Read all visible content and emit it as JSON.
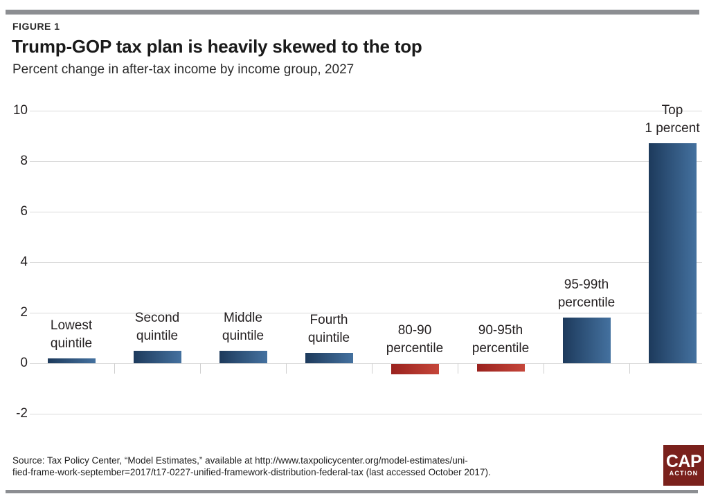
{
  "figure_label": "FIGURE 1",
  "title": "Trump-GOP tax plan is heavily skewed to the top",
  "subtitle": "Percent change in after-tax income by income group, 2027",
  "source": {
    "line1": "Source: Tax Policy Center, “Model Estimates,” available at http://www.taxpolicycenter.org/model-estimates/uni-",
    "line2": "fied-frame-work-september=2017/t17-0227-unified-framework-distribution-federal-tax (last accessed October 2017)."
  },
  "logo": {
    "primary": "CAP",
    "secondary": "ACTION",
    "bg_color": "#7a211c"
  },
  "colors": {
    "positive_bar_start": "#1d3a5c",
    "positive_bar_end": "#44719f",
    "negative_bar_start": "#9a221e",
    "negative_bar_end": "#c5463a",
    "gridline": "#d9d9d9",
    "accent_bar": "#8c8e92",
    "text": "#231f20"
  },
  "chart_data": {
    "type": "bar",
    "title": "Trump-GOP tax plan is heavily skewed to the top",
    "subtitle": "Percent change in after-tax income by income group, 2027",
    "xlabel": "",
    "ylabel": "Percent change in after-tax income",
    "categories": [
      "Lowest quintile",
      "Second quintile",
      "Middle quintile",
      "Fourth quintile",
      "80-90 percentile",
      "90-95th percentile",
      "95-99th percentile",
      "Top 1 percent"
    ],
    "category_lines": [
      [
        "Lowest",
        "quintile"
      ],
      [
        "Second",
        "quintile"
      ],
      [
        "Middle",
        "quintile"
      ],
      [
        "Fourth",
        "quintile"
      ],
      [
        "80-90",
        "percentile"
      ],
      [
        "90-95th",
        "percentile"
      ],
      [
        "95-99th",
        "percentile"
      ],
      [
        "Top",
        "1 percent"
      ]
    ],
    "values": [
      0.2,
      0.5,
      0.5,
      0.4,
      -0.4,
      -0.3,
      1.8,
      8.7
    ],
    "units": "percent",
    "yticks": [
      10,
      8,
      6,
      4,
      2,
      0,
      -2
    ],
    "ylim": [
      -2,
      10
    ],
    "grid": "horizontal",
    "legend": "none"
  }
}
